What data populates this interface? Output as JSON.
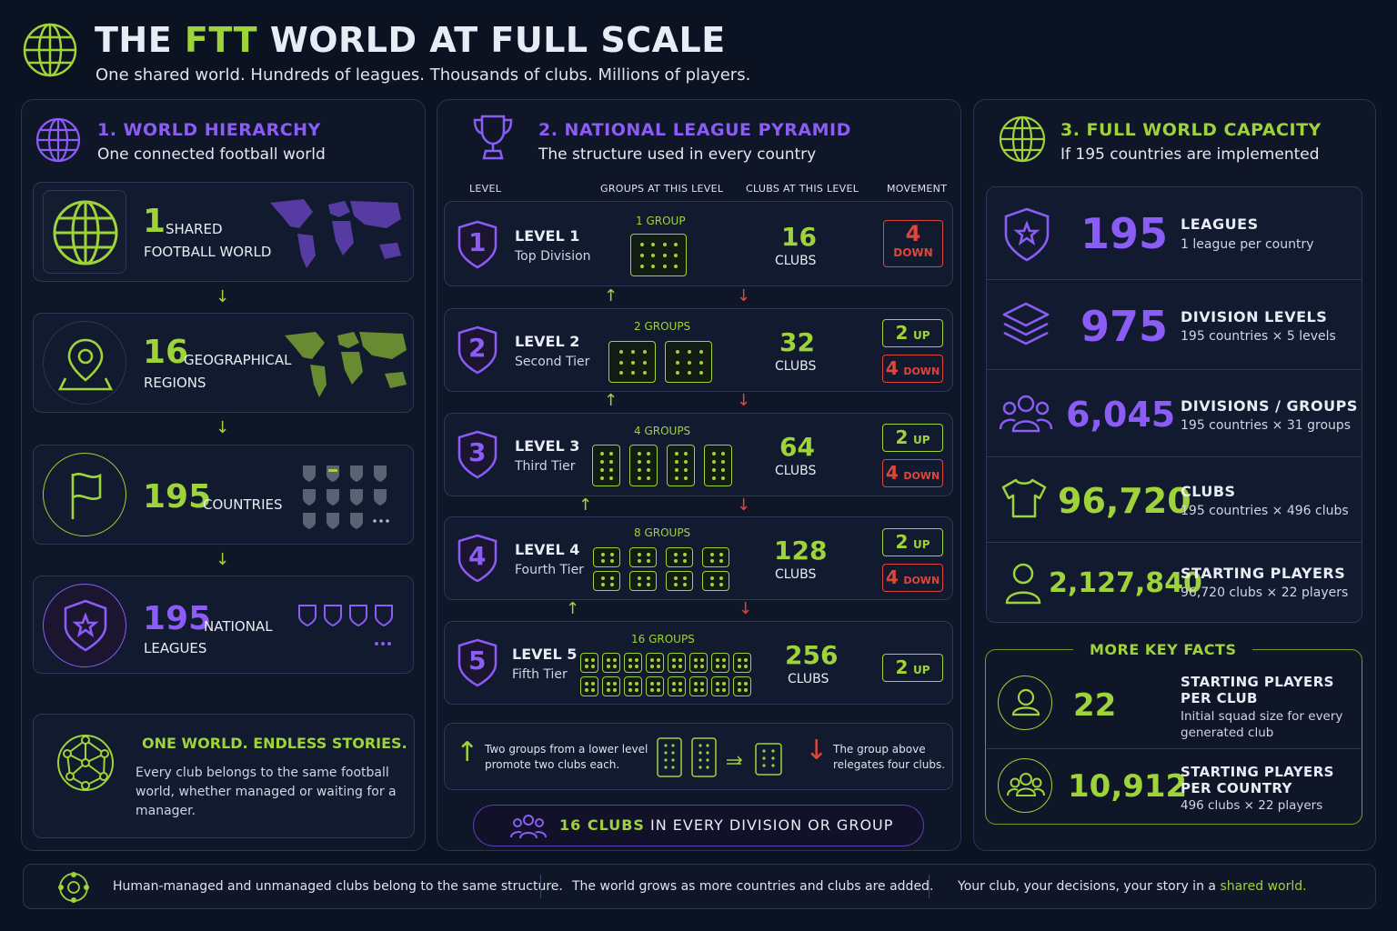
{
  "header": {
    "title_pre": "THE ",
    "title_accent": "FTT",
    "title_post": " WORLD AT FULL SCALE",
    "subtitle": "One shared world. Hundreds of leagues. Thousands of clubs. Millions of players."
  },
  "hierarchy": {
    "title": "1. WORLD HIERARCHY",
    "subtitle": "One connected football world",
    "items": [
      {
        "number": "1",
        "label_a": "SHARED",
        "label_b": "FOOTBALL WORLD",
        "icon": "globe-icon"
      },
      {
        "number": "16",
        "label_a": "GEOGRAPHICAL",
        "label_b": "REGIONS",
        "icon": "map-pin-icon"
      },
      {
        "number": "195",
        "label_a": "COUNTRIES",
        "label_b": "",
        "icon": "flag-icon"
      },
      {
        "number": "195",
        "label_a": "NATIONAL",
        "label_b": "LEAGUES",
        "icon": "shield-star-icon"
      }
    ],
    "slogan_title": "ONE WORLD. ENDLESS STORIES.",
    "slogan_text": "Every club belongs to the same football world, whether managed or waiting for a manager."
  },
  "pyramid": {
    "title": "2. NATIONAL LEAGUE PYRAMID",
    "subtitle": "The structure used in every country",
    "columns": [
      "LEVEL",
      "GROUPS AT THIS LEVEL",
      "CLUBS AT THIS LEVEL",
      "MOVEMENT"
    ],
    "clubs_label": "CLUBS",
    "levels": [
      {
        "num": "1",
        "name": "LEVEL 1",
        "tier": "Top Division",
        "groups": "1 GROUP",
        "group_count": 1,
        "clubs": "16",
        "up": "",
        "down": "4"
      },
      {
        "num": "2",
        "name": "LEVEL 2",
        "tier": "Second Tier",
        "groups": "2 GROUPS",
        "group_count": 2,
        "clubs": "32",
        "up": "2",
        "down": "4"
      },
      {
        "num": "3",
        "name": "LEVEL 3",
        "tier": "Third Tier",
        "groups": "4 GROUPS",
        "group_count": 4,
        "clubs": "64",
        "up": "2",
        "down": "4"
      },
      {
        "num": "4",
        "name": "LEVEL 4",
        "tier": "Fourth Tier",
        "groups": "8 GROUPS",
        "group_count": 8,
        "clubs": "128",
        "up": "2",
        "down": "4"
      },
      {
        "num": "5",
        "name": "LEVEL 5",
        "tier": "Fifth Tier",
        "groups": "16 GROUPS",
        "group_count": 16,
        "clubs": "256",
        "up": "2",
        "down": ""
      }
    ],
    "up_label": "UP",
    "down_label": "DOWN",
    "legend_up": "Two groups from a lower level promote two clubs each.",
    "legend_down": "The group above relegates four clubs.",
    "banner_accent": "16 CLUBS",
    "banner_rest": " IN EVERY DIVISION OR GROUP"
  },
  "capacity": {
    "title": "3. FULL WORLD CAPACITY",
    "subtitle": "If 195 countries are implemented",
    "rows": [
      {
        "value": "195",
        "label": "LEAGUES",
        "desc": "1 league per country",
        "icon": "shield-star-icon",
        "color": "#8b5cf6"
      },
      {
        "value": "975",
        "label": "DIVISION LEVELS",
        "desc": "195 countries × 5 levels",
        "icon": "layers-icon",
        "color": "#8b5cf6"
      },
      {
        "value": "6,045",
        "label": "DIVISIONS / GROUPS",
        "desc": "195 countries × 31 groups",
        "icon": "group-icon",
        "color": "#8b5cf6"
      },
      {
        "value": "96,720",
        "label": "CLUBS",
        "desc": "195 countries × 496 clubs",
        "icon": "shirt-icon",
        "color": "#9fd33a"
      },
      {
        "value": "2,127,840",
        "label": "STARTING PLAYERS",
        "desc": "96,720 clubs × 22 players",
        "icon": "player-icon",
        "color": "#9fd33a"
      }
    ],
    "facts_title": "MORE KEY FACTS",
    "facts": [
      {
        "value": "22",
        "label_a": "STARTING PLAYERS",
        "label_b": "PER CLUB",
        "desc": "Initial squad size for every generated club",
        "icon": "person-icon"
      },
      {
        "value": "10,912",
        "label_a": "STARTING PLAYERS",
        "label_b": "PER COUNTRY",
        "desc": "496 clubs × 22 players",
        "icon": "group-icon"
      }
    ]
  },
  "footer": {
    "item1": "Human-managed and unmanaged clubs belong to the same structure.",
    "item2": "The world grows as more countries and clubs are added.",
    "item3_pre": "Your club, your decisions, your story in a ",
    "item3_accent": "shared world."
  }
}
